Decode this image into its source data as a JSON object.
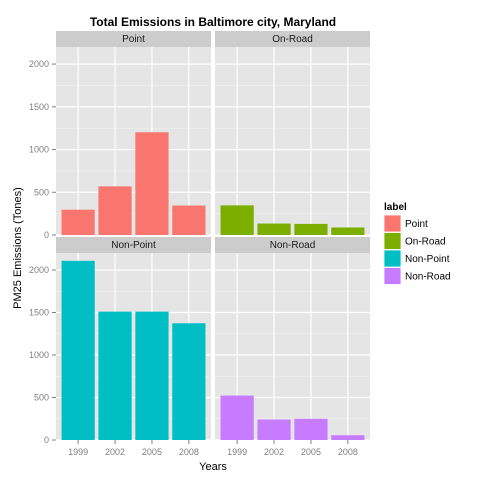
{
  "chart_data": {
    "type": "bar",
    "title": "Total Emissions in Baltimore city, Maryland",
    "xlabel": "Years",
    "ylabel": "PM25 Emissions (Tones)",
    "categories": [
      "1999",
      "2002",
      "2005",
      "2008"
    ],
    "ylim": [
      0,
      2200
    ],
    "yticks": [
      0,
      500,
      1000,
      1500,
      2000
    ],
    "grid": true,
    "legend": {
      "title": "label",
      "placement": "right",
      "items": [
        "Point",
        "On-Road",
        "Non-Point",
        "Non-Road"
      ]
    },
    "colors": {
      "Point": "#F8766D",
      "On-Road": "#7CAE00",
      "Non-Point": "#00BFC4",
      "Non-Road": "#C77CFF",
      "panel_bg": "#E5E5E5",
      "strip_bg": "#CCCCCC",
      "grid": "#FFFFFF"
    },
    "series": [
      {
        "name": "Point",
        "values": [
          296,
          569,
          1202,
          345
        ]
      },
      {
        "name": "On-Road",
        "values": [
          347,
          134,
          130,
          88
        ]
      },
      {
        "name": "Non-Point",
        "values": [
          2108,
          1510,
          1510,
          1373
        ]
      },
      {
        "name": "Non-Road",
        "values": [
          523,
          241,
          249,
          56
        ]
      }
    ]
  }
}
